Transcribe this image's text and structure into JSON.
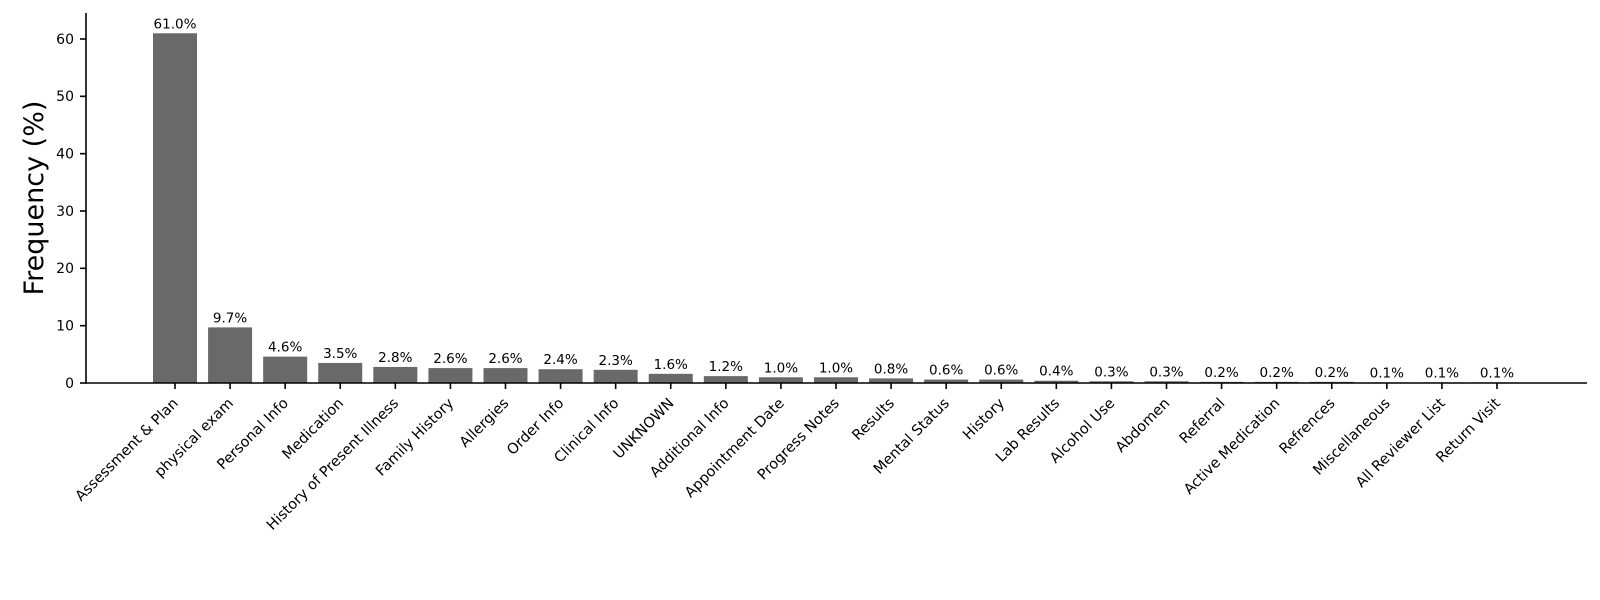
{
  "chart_data": {
    "type": "bar",
    "title": "",
    "xlabel": "",
    "ylabel": "Frequency (%)",
    "ylim": [
      0,
      64.5
    ],
    "yticks": [
      0,
      10,
      20,
      30,
      40,
      50,
      60
    ],
    "grid": false,
    "legend": "none",
    "bar_color": "#696969",
    "text_color": "#000000",
    "categories": [
      "Assessment & Plan",
      "physical exam",
      "Personal Info",
      "Medication",
      "History of Present Illness",
      "Family History",
      "Allergies",
      "Order Info",
      "Clinical Info",
      "UNKNOWN",
      "Additional Info",
      "Appointment Date",
      "Progress Notes",
      "Results",
      "Mental Status",
      "History",
      "Lab Results",
      "Alcohol Use",
      "Abdomen",
      "Referral",
      "Active Medication",
      "Refrences",
      "Miscellaneous",
      "All Reviewer List",
      "Return Visit"
    ],
    "values": [
      61.0,
      9.7,
      4.6,
      3.5,
      2.8,
      2.6,
      2.6,
      2.4,
      2.3,
      1.6,
      1.2,
      1.0,
      1.0,
      0.8,
      0.6,
      0.6,
      0.4,
      0.3,
      0.3,
      0.2,
      0.2,
      0.2,
      0.1,
      0.1,
      0.1
    ],
    "value_labels": [
      "61.0%",
      "9.7%",
      "4.6%",
      "3.5%",
      "2.8%",
      "2.6%",
      "2.6%",
      "2.4%",
      "2.3%",
      "1.6%",
      "1.2%",
      "1.0%",
      "1.0%",
      "0.8%",
      "0.6%",
      "0.6%",
      "0.4%",
      "0.3%",
      "0.3%",
      "0.2%",
      "0.2%",
      "0.2%",
      "0.1%",
      "0.1%",
      "0.1%"
    ]
  }
}
